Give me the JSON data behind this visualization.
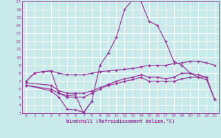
{
  "xlabel": "Windchill (Refroidissement éolien,°C)",
  "background_color": "#c8eaea",
  "grid_color": "#ffffff",
  "line_color": "#993399",
  "xlim": [
    -0.5,
    23.5
  ],
  "ylim": [
    3,
    17
  ],
  "xticks": [
    0,
    1,
    2,
    3,
    4,
    5,
    6,
    7,
    8,
    9,
    10,
    11,
    12,
    13,
    14,
    15,
    16,
    17,
    18,
    19,
    20,
    21,
    22,
    23
  ],
  "yticks": [
    3,
    4,
    5,
    6,
    7,
    8,
    9,
    10,
    11,
    12,
    13,
    14,
    15,
    16,
    17
  ],
  "line1_x": [
    0,
    1,
    2,
    3,
    4,
    5,
    6,
    7,
    8,
    9,
    10,
    11,
    12,
    13,
    14,
    15,
    16,
    17,
    18,
    19,
    20,
    21,
    22
  ],
  "line1_y": [
    7.0,
    8.0,
    8.2,
    8.3,
    5.5,
    5.2,
    5.3,
    3.0,
    4.5,
    9.0,
    10.5,
    12.5,
    16.0,
    17.2,
    17.0,
    14.5,
    14.0,
    12.0,
    9.5,
    9.0,
    8.0,
    7.5,
    7.5
  ],
  "line2_x": [
    0,
    3,
    4,
    5,
    6,
    7,
    8
  ],
  "line2_y": [
    6.5,
    5.8,
    5.0,
    3.5,
    3.4,
    3.1,
    4.5
  ],
  "line3_x": [
    0,
    1,
    2,
    3,
    4,
    5,
    6,
    7,
    8,
    9,
    10,
    11,
    12,
    13,
    14,
    15,
    16,
    17,
    18,
    19,
    20,
    21,
    22,
    23
  ],
  "line3_y": [
    7.0,
    8.0,
    8.2,
    8.3,
    8.0,
    7.8,
    7.8,
    7.8,
    8.0,
    8.2,
    8.3,
    8.4,
    8.5,
    8.6,
    8.8,
    9.0,
    9.0,
    9.0,
    9.2,
    9.3,
    9.5,
    9.5,
    9.3,
    9.0
  ],
  "line4_x": [
    0,
    3,
    4,
    5,
    6,
    7,
    8,
    9,
    10,
    11,
    12,
    13,
    14,
    15,
    16,
    17,
    18,
    19,
    20,
    21,
    22,
    23
  ],
  "line4_y": [
    6.5,
    6.0,
    5.5,
    5.0,
    5.0,
    5.0,
    5.5,
    6.0,
    6.5,
    6.7,
    7.0,
    7.2,
    7.5,
    7.0,
    7.0,
    7.0,
    7.0,
    7.3,
    7.5,
    7.5,
    7.2,
    4.7
  ],
  "line5_x": [
    0,
    3,
    4,
    5,
    6,
    7,
    8,
    9,
    10,
    11,
    12,
    13,
    14,
    15,
    16,
    17,
    18,
    19,
    20,
    21,
    22,
    23
  ],
  "line5_y": [
    6.8,
    6.5,
    5.8,
    5.5,
    5.5,
    5.5,
    5.8,
    6.2,
    6.6,
    7.0,
    7.3,
    7.5,
    7.8,
    7.5,
    7.5,
    7.3,
    7.5,
    8.0,
    8.0,
    7.8,
    7.5,
    4.7
  ]
}
